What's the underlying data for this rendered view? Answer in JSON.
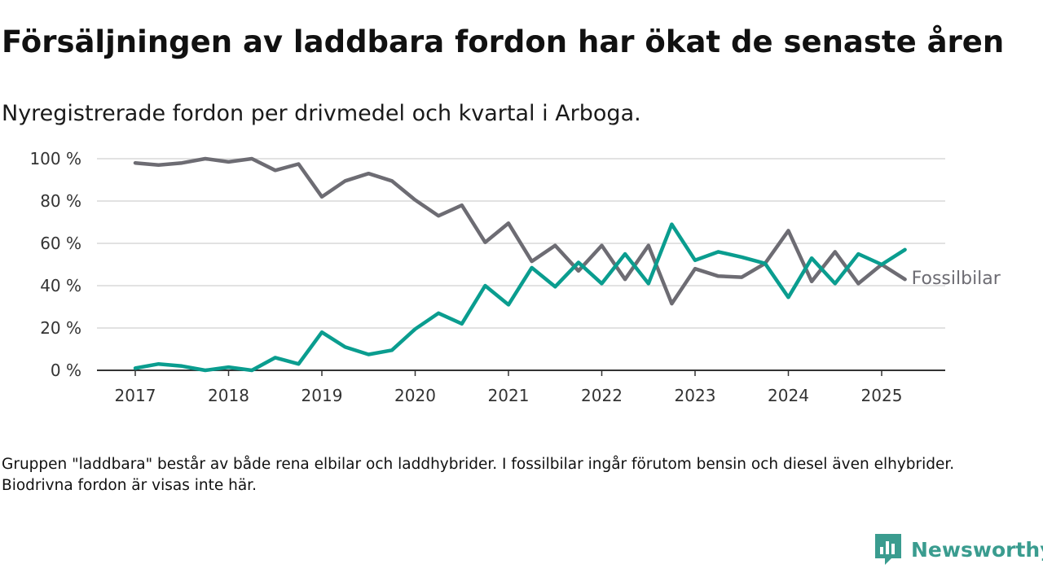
{
  "title": "Försäljningen av laddbara fordon har ökat de senaste åren",
  "subtitle": "Nyregistrerade fordon per drivmedel och kvartal i Arboga.",
  "footnote": "Gruppen \"laddbara\" består av både rena elbilar och laddhybrider. I fossilbilar ingår förutom bensin och diesel även elhybrider. Biodrivna fordon är visas inte här.",
  "brand": {
    "name": "Newsworthy",
    "icon": "newsworthy-logo-icon",
    "color": "#3a9c8f"
  },
  "chart_data": {
    "type": "line",
    "x": [
      "2017-Q1",
      "2017-Q2",
      "2017-Q3",
      "2017-Q4",
      "2018-Q1",
      "2018-Q2",
      "2018-Q3",
      "2018-Q4",
      "2019-Q1",
      "2019-Q2",
      "2019-Q3",
      "2019-Q4",
      "2020-Q1",
      "2020-Q2",
      "2020-Q3",
      "2020-Q4",
      "2021-Q1",
      "2021-Q2",
      "2021-Q3",
      "2021-Q4",
      "2022-Q1",
      "2022-Q2",
      "2022-Q3",
      "2022-Q4",
      "2023-Q1",
      "2023-Q2",
      "2023-Q3",
      "2023-Q4",
      "2024-Q1",
      "2024-Q2",
      "2024-Q3",
      "2024-Q4",
      "2025-Q1",
      "2025-Q2"
    ],
    "series": [
      {
        "name": "Fossilbilar",
        "color": "#6d6c73",
        "values": [
          98,
          97,
          98,
          100,
          98.5,
          100,
          94.5,
          97.5,
          82,
          89.5,
          93,
          89.5,
          80.5,
          73,
          78,
          60.5,
          69.5,
          51.5,
          59,
          47,
          59,
          43,
          59,
          31.5,
          48,
          44.5,
          44,
          50.5,
          66,
          42,
          56,
          41,
          50,
          43
        ]
      },
      {
        "name": "",
        "color": "#0a9d8f",
        "values": [
          1,
          3,
          2,
          0,
          1.5,
          0,
          6,
          3,
          18,
          11,
          7.5,
          9.5,
          19.5,
          27,
          22,
          40,
          31,
          48.5,
          39.5,
          51,
          41,
          55,
          41,
          69,
          52,
          56,
          53.5,
          50.5,
          34.5,
          53,
          41,
          55,
          50,
          57
        ]
      }
    ],
    "xticks": [
      "2017",
      "2018",
      "2019",
      "2020",
      "2021",
      "2022",
      "2023",
      "2024",
      "2025"
    ],
    "yticks": [
      "0 %",
      "20 %",
      "40 %",
      "60 %",
      "80 %",
      "100 %"
    ],
    "ylim": [
      0,
      100
    ],
    "grid": true,
    "legend": "inline-end-labels"
  }
}
